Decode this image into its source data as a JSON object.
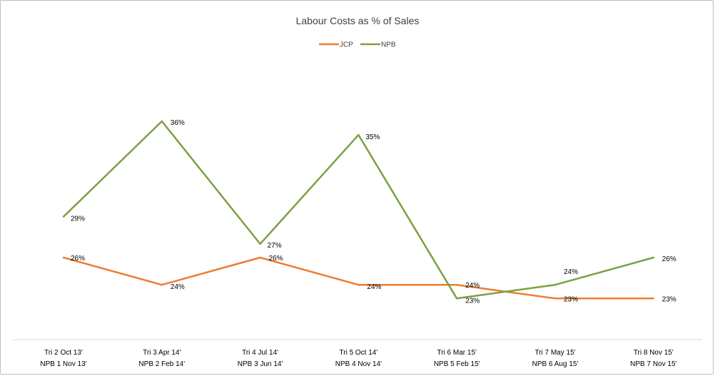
{
  "chart_data": {
    "type": "line",
    "title": "Labour Costs as % of Sales",
    "categories": [
      [
        "Tri 2 Oct 13'",
        "NPB 1 Nov 13'"
      ],
      [
        "Tri 3  Apr 14'",
        "NPB 2 Feb 14'"
      ],
      [
        "Tri 4  Jul 14'",
        "NPB 3 Jun 14'"
      ],
      [
        "Tri 5  Oct 14'",
        "NPB 4  Nov 14'"
      ],
      [
        "Tri 6  Mar 15'",
        "NPB 5 Feb 15'"
      ],
      [
        "Tri 7 May 15'",
        "NPB 6  Aug 15'"
      ],
      [
        "Tri 8 Nov 15'",
        "NPB 7 Nov 15'"
      ]
    ],
    "series": [
      {
        "name": "JCP",
        "color": "#ED7D31",
        "values": [
          26,
          24,
          26,
          24,
          24,
          23,
          23
        ],
        "labels": [
          "26%",
          "24%",
          "26%",
          "24%",
          "24%",
          "23%",
          "23%"
        ]
      },
      {
        "name": "NPB",
        "color": "#7BA142",
        "values": [
          29,
          36,
          27,
          35,
          23,
          24,
          26
        ],
        "labels": [
          "29%",
          "36%",
          "27%",
          "35%",
          "23%",
          "24%",
          "26%"
        ]
      }
    ],
    "legend_position": "top",
    "grid": false
  }
}
